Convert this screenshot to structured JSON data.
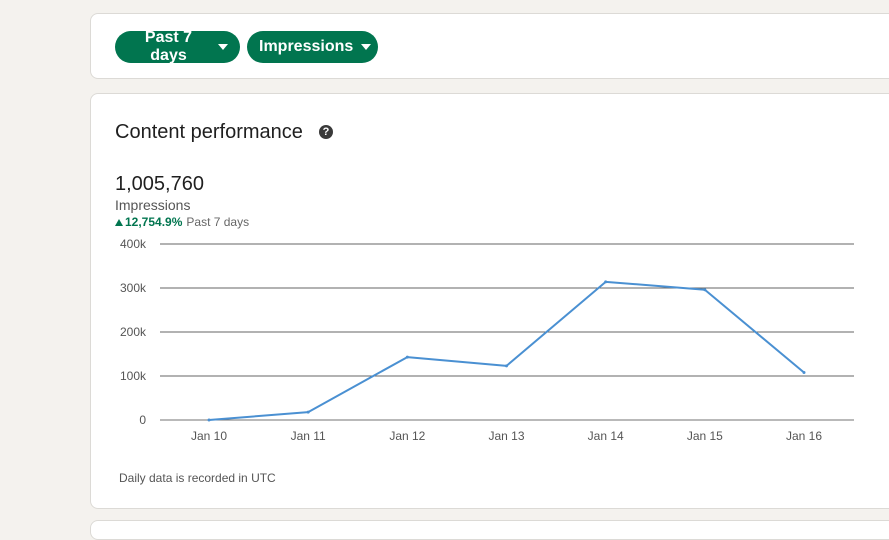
{
  "filters": {
    "range_label": "Past 7 days",
    "metric_label": "Impressions"
  },
  "content_performance": {
    "title": "Content performance",
    "help_icon": "question-circle-icon",
    "total": "1,005,760",
    "metric": "Impressions",
    "change": "12,754.9%",
    "change_period": "Past 7 days",
    "footnote": "Daily data is recorded in UTC"
  },
  "colors": {
    "accent": "#01754f",
    "line": "#4a90d2"
  },
  "chart_data": {
    "type": "line",
    "categories": [
      "Jan 10",
      "Jan 11",
      "Jan 12",
      "Jan 13",
      "Jan 14",
      "Jan 15",
      "Jan 16"
    ],
    "values": [
      0,
      18000,
      143000,
      123000,
      314000,
      296000,
      108000
    ],
    "yticks": [
      0,
      100000,
      200000,
      300000,
      400000
    ],
    "ytick_labels": [
      "0",
      "100k",
      "200k",
      "300k",
      "400k"
    ],
    "ylim": [
      0,
      400000
    ],
    "grid": true
  }
}
